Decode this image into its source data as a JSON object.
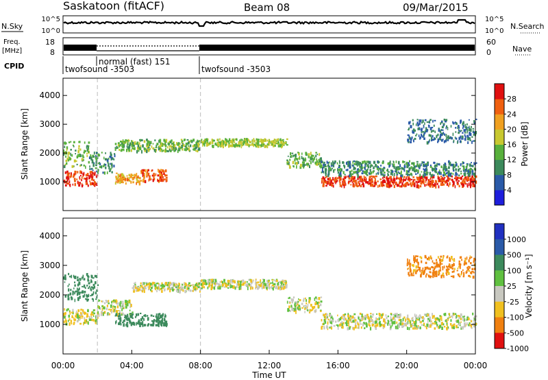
{
  "header": {
    "station": "Saskatoon (fitACF)",
    "beam": "Beam 08",
    "date": "09/Mar/2015"
  },
  "strip": {
    "nsky_label": "N.Sky",
    "nsky_ticks": [
      "10^5",
      "10^0"
    ],
    "nsearch_label": "N.Search",
    "nsearch_ticks": [
      "10^5",
      "10^0"
    ],
    "freq_label_1": "Freq.",
    "freq_label_2": "[MHz]",
    "freq_ticks": [
      "18",
      "8"
    ],
    "nave_label": "Nave",
    "nave_ticks": [
      "60",
      "0"
    ],
    "cpid_label": "CPID",
    "cpid_segments": [
      {
        "name": "twofsound -3503",
        "start_hour": 0,
        "end_hour": 2
      },
      {
        "name": "normal (fast) 151",
        "start_hour": 2,
        "end_hour": 8
      },
      {
        "name": "twofsound -3503",
        "start_hour": 8,
        "end_hour": 24
      }
    ]
  },
  "chart_data": [
    {
      "type": "heatmap",
      "name": "power",
      "ylabel": "Slant Range [km]",
      "xlim_hours": [
        0,
        24
      ],
      "ylim": [
        0,
        4600
      ],
      "yticks": [
        1000,
        2000,
        3000,
        4000
      ],
      "colorbar_label": "Power [dB]",
      "colorbar_ticks": [
        "4",
        "8",
        "12",
        "16",
        "20",
        "24",
        "28"
      ],
      "colorbar_colors": [
        "#1e1edc",
        "#2a5aa8",
        "#3c8a5c",
        "#58b03c",
        "#c8c830",
        "#f0a020",
        "#f06010",
        "#e01010"
      ],
      "echo_bands": [
        {
          "t0": 0.0,
          "t1": 2.0,
          "center_km": 1150,
          "width_km": 500,
          "power_db": 28
        },
        {
          "t0": 0.0,
          "t1": 1.5,
          "center_km": 2000,
          "width_km": 900,
          "power_db": 14
        },
        {
          "t0": 1.5,
          "t1": 3.0,
          "center_km": 1700,
          "width_km": 700,
          "power_db": 10
        },
        {
          "t0": 3.0,
          "t1": 4.5,
          "center_km": 1150,
          "width_km": 350,
          "power_db": 22
        },
        {
          "t0": 4.5,
          "t1": 6.0,
          "center_km": 1250,
          "width_km": 400,
          "power_db": 26
        },
        {
          "t0": 3.0,
          "t1": 8.0,
          "center_km": 2300,
          "width_km": 400,
          "power_db": 14
        },
        {
          "t0": 8.0,
          "t1": 13.0,
          "center_km": 2400,
          "width_km": 250,
          "power_db": 16
        },
        {
          "t0": 13.0,
          "t1": 15.0,
          "center_km": 1800,
          "width_km": 500,
          "power_db": 14
        },
        {
          "t0": 15.0,
          "t1": 24.0,
          "center_km": 1050,
          "width_km": 350,
          "power_db": 28
        },
        {
          "t0": 15.0,
          "t1": 24.0,
          "center_km": 1500,
          "width_km": 500,
          "power_db": 10
        },
        {
          "t0": 20.0,
          "t1": 24.0,
          "center_km": 2800,
          "width_km": 800,
          "power_db": 8
        }
      ]
    },
    {
      "type": "heatmap",
      "name": "velocity",
      "ylabel": "Slant Range [km]",
      "xlabel": "Time UT",
      "xticks": [
        "00:00",
        "04:00",
        "08:00",
        "12:00",
        "16:00",
        "20:00",
        "00:00"
      ],
      "xlim_hours": [
        0,
        24
      ],
      "ylim": [
        0,
        4600
      ],
      "yticks": [
        1000,
        2000,
        3000,
        4000
      ],
      "colorbar_label": "Velocity [m s⁻¹]",
      "colorbar_ticks": [
        "1000",
        "500",
        "100",
        "25",
        "-25",
        "-100",
        "-500",
        "-1000"
      ],
      "colorbar_colors": [
        "#2030c0",
        "#2a5aa8",
        "#3c8a5c",
        "#60c040",
        "#c8c8c0",
        "#f0c020",
        "#f08010",
        "#e01010"
      ],
      "echo_bands": [
        {
          "t0": 0.0,
          "t1": 2.0,
          "center_km": 1300,
          "width_km": 500,
          "velocity": -25
        },
        {
          "t0": 0.0,
          "t1": 2.0,
          "center_km": 2300,
          "width_km": 900,
          "velocity": 300
        },
        {
          "t0": 2.0,
          "t1": 4.0,
          "center_km": 1600,
          "width_km": 500,
          "velocity": 0
        },
        {
          "t0": 3.0,
          "t1": 6.0,
          "center_km": 1200,
          "width_km": 400,
          "velocity": 250
        },
        {
          "t0": 4.0,
          "t1": 8.0,
          "center_km": 2300,
          "width_km": 300,
          "velocity": 0
        },
        {
          "t0": 8.0,
          "t1": 13.0,
          "center_km": 2400,
          "width_km": 300,
          "velocity": 0
        },
        {
          "t0": 13.0,
          "t1": 15.0,
          "center_km": 1700,
          "width_km": 500,
          "velocity": 0
        },
        {
          "t0": 15.0,
          "t1": 24.0,
          "center_km": 1150,
          "width_km": 500,
          "velocity": 0
        },
        {
          "t0": 20.0,
          "t1": 24.0,
          "center_km": 3000,
          "width_km": 700,
          "velocity": -150
        }
      ]
    }
  ]
}
